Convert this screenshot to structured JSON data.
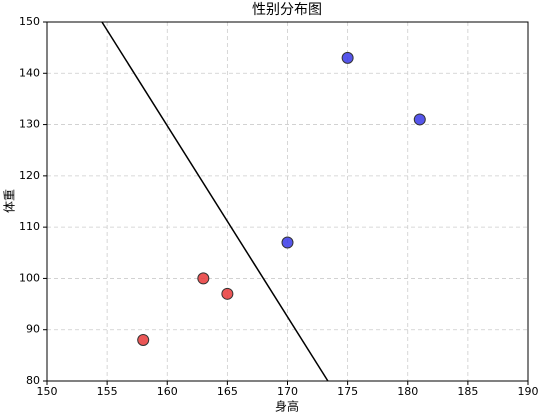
{
  "chart_data": {
    "type": "scatter",
    "title": "性别分布图",
    "xlabel": "身高",
    "ylabel": "体重",
    "xlim": [
      150,
      190
    ],
    "ylim": [
      80,
      150
    ],
    "xticks": [
      150,
      155,
      160,
      165,
      170,
      175,
      180,
      185,
      190
    ],
    "yticks": [
      80,
      90,
      100,
      110,
      120,
      130,
      140,
      150
    ],
    "grid": true,
    "series": [
      {
        "color": "#e83838",
        "x": [
          158,
          163,
          165
        ],
        "values": [
          88,
          100,
          97
        ]
      },
      {
        "color": "#3838e8",
        "x": [
          170,
          175,
          181
        ],
        "values": [
          107,
          143,
          131
        ]
      }
    ],
    "line": {
      "color": "#000000",
      "x": [
        154.57,
        173.36
      ],
      "values": [
        150,
        80
      ]
    }
  }
}
